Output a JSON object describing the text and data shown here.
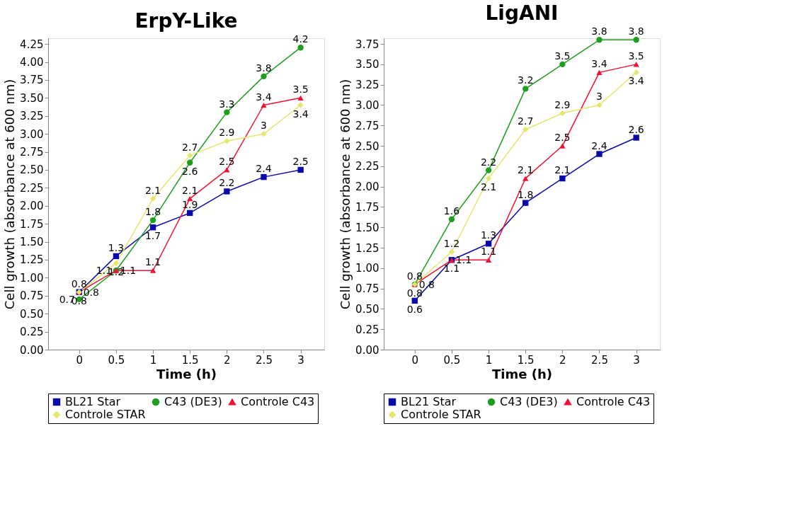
{
  "chart_data": [
    {
      "type": "line",
      "title": "ErpY-Like",
      "xlabel": "Time (h)",
      "ylabel": "Cell growth (absorbance at 600 nm)",
      "x": [
        0,
        0.5,
        1,
        1.5,
        2,
        2.5,
        3
      ],
      "series": [
        {
          "name": "BL21 Star",
          "color": "#0a0aa8",
          "marker": "square",
          "values": [
            0.8,
            1.3,
            1.7,
            1.9,
            2.2,
            2.4,
            2.5
          ]
        },
        {
          "name": "C43 (DE3)",
          "color": "#1e9e1e",
          "marker": "circle",
          "values": [
            0.7,
            1.1,
            1.8,
            2.6,
            3.3,
            3.8,
            4.2
          ]
        },
        {
          "name": "Controle C43",
          "color": "#ee1133",
          "marker": "triangle",
          "values": [
            0.8,
            1.1,
            1.1,
            2.1,
            2.5,
            3.4,
            3.5
          ]
        },
        {
          "name": "Controle STAR",
          "color": "#e6e66e",
          "marker": "diamond",
          "values": [
            0.8,
            1.2,
            2.1,
            2.7,
            2.9,
            3.0,
            3.4
          ]
        }
      ],
      "xlim": [
        -0.42,
        3.32
      ],
      "xticks": [
        0,
        {
          "value": 0.5,
          "label": "0.5"
        },
        1,
        {
          "value": 1.5,
          "label": "1.5"
        },
        2,
        {
          "value": 2.5,
          "label": "2.5"
        },
        3
      ],
      "ylim": [
        0,
        4.33
      ],
      "yticks": [
        {
          "value": 0,
          "label": "0.00"
        },
        {
          "value": 0.25,
          "label": "0.25"
        },
        {
          "value": 0.5,
          "label": "0.50"
        },
        {
          "value": 0.75,
          "label": "0.75"
        },
        {
          "value": 1,
          "label": "1.00"
        },
        {
          "value": 1.25,
          "label": "1.25"
        },
        {
          "value": 1.5,
          "label": "1.50"
        },
        {
          "value": 1.75,
          "label": "1.75"
        },
        {
          "value": 2,
          "label": "2.00"
        },
        {
          "value": 2.25,
          "label": "2.25"
        },
        {
          "value": 2.5,
          "label": "2.50"
        },
        {
          "value": 2.75,
          "label": "2.75"
        },
        {
          "value": 3,
          "label": "3.00"
        },
        {
          "value": 3.25,
          "label": "3.25"
        },
        {
          "value": 3.5,
          "label": "3.50"
        },
        {
          "value": 3.75,
          "label": "3.75"
        },
        {
          "value": 4,
          "label": "4.00"
        },
        {
          "value": 4.25,
          "label": "4.25"
        }
      ],
      "data_labels": true,
      "grid": false,
      "legend": "bottom",
      "line_style": "solid"
    },
    {
      "type": "line",
      "title": "LigANI",
      "xlabel": "Time (h)",
      "ylabel": "Cell growth (absorbance at 600 nm)",
      "x": [
        0,
        0.5,
        1,
        1.5,
        2,
        2.5,
        3
      ],
      "series": [
        {
          "name": "BL21 Star",
          "color": "#0a0aa8",
          "marker": "square",
          "values": [
            0.6,
            1.1,
            1.3,
            1.8,
            2.1,
            2.4,
            2.6
          ]
        },
        {
          "name": "C43 (DE3)",
          "color": "#1e9e1e",
          "marker": "circle",
          "values": [
            0.8,
            1.6,
            2.2,
            3.2,
            3.5,
            3.8,
            3.8
          ]
        },
        {
          "name": "Controle C43",
          "color": "#ee1133",
          "marker": "triangle",
          "values": [
            0.8,
            1.1,
            1.1,
            2.1,
            2.5,
            3.4,
            3.5
          ]
        },
        {
          "name": "Controle STAR",
          "color": "#e6e66e",
          "marker": "diamond",
          "values": [
            0.8,
            1.2,
            2.1,
            2.7,
            2.9,
            3.0,
            3.4
          ]
        }
      ],
      "xlim": [
        -0.42,
        3.32
      ],
      "xticks": [
        0,
        {
          "value": 0.5,
          "label": "0.5"
        },
        1,
        {
          "value": 1.5,
          "label": "1.5"
        },
        2,
        {
          "value": 2.5,
          "label": "2.5"
        },
        3
      ],
      "ylim": [
        0,
        3.82
      ],
      "yticks": [
        {
          "value": 0,
          "label": "0.00"
        },
        {
          "value": 0.25,
          "label": "0.25"
        },
        {
          "value": 0.5,
          "label": "0.50"
        },
        {
          "value": 0.75,
          "label": "0.75"
        },
        {
          "value": 1,
          "label": "1.00"
        },
        {
          "value": 1.25,
          "label": "1.25"
        },
        {
          "value": 1.5,
          "label": "1.50"
        },
        {
          "value": 1.75,
          "label": "1.75"
        },
        {
          "value": 2,
          "label": "2.00"
        },
        {
          "value": 2.25,
          "label": "2.25"
        },
        {
          "value": 2.5,
          "label": "2.50"
        },
        {
          "value": 2.75,
          "label": "2.75"
        },
        {
          "value": 3,
          "label": "3.00"
        },
        {
          "value": 3.25,
          "label": "3.25"
        },
        {
          "value": 3.5,
          "label": "3.50"
        },
        {
          "value": 3.75,
          "label": "3.75"
        }
      ],
      "data_labels": true,
      "grid": false,
      "legend": "bottom",
      "line_style": "solid"
    }
  ]
}
